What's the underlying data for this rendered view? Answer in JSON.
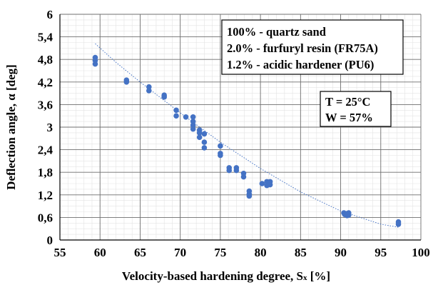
{
  "chart_data": {
    "type": "scatter",
    "title": "",
    "xlabel": "Velocity-based hardening degree, S",
    "xlabel_sub": "x",
    "xlabel_unit": " [%]",
    "ylabel": "Deflection angle, α [deg]",
    "xlim": [
      55,
      100
    ],
    "ylim": [
      0,
      6
    ],
    "x_ticks": [
      55,
      60,
      65,
      70,
      75,
      80,
      85,
      90,
      95,
      100
    ],
    "x_tick_labels": [
      "55",
      "60",
      "65",
      "70",
      "75",
      "80",
      "85",
      "90",
      "95",
      "100"
    ],
    "y_ticks": [
      0,
      0.6,
      1.2,
      1.8,
      2.4,
      3,
      3.6,
      4.2,
      4.8,
      5.4,
      6
    ],
    "y_tick_labels": [
      "0",
      "0,6",
      "1,2",
      "1,8",
      "2,4",
      "3",
      "3,6",
      "4,2",
      "4,8",
      "5,4",
      "6"
    ],
    "grid": "major and minor",
    "marker_color": "#4472c4",
    "trendline_color": "#4472c4",
    "trendline": {
      "style": "dotted",
      "points": [
        [
          59.4,
          5.22
        ],
        [
          62,
          4.72
        ],
        [
          65,
          4.2
        ],
        [
          70,
          3.38
        ],
        [
          75,
          2.6
        ],
        [
          80,
          1.9
        ],
        [
          85,
          1.28
        ],
        [
          90,
          0.77
        ],
        [
          95,
          0.42
        ],
        [
          97.2,
          0.34
        ]
      ]
    },
    "points": [
      [
        59.4,
        4.85
      ],
      [
        59.4,
        4.77
      ],
      [
        59.4,
        4.68
      ],
      [
        63.3,
        4.25
      ],
      [
        63.3,
        4.2
      ],
      [
        66.1,
        4.07
      ],
      [
        66.1,
        3.97
      ],
      [
        68.0,
        3.85
      ],
      [
        68.0,
        3.8
      ],
      [
        69.5,
        3.45
      ],
      [
        69.5,
        3.3
      ],
      [
        70.7,
        3.27
      ],
      [
        71.6,
        3.27
      ],
      [
        71.6,
        3.15
      ],
      [
        71.6,
        3.05
      ],
      [
        71.6,
        2.95
      ],
      [
        72.4,
        2.92
      ],
      [
        72.4,
        2.85
      ],
      [
        72.4,
        2.73
      ],
      [
        73.0,
        2.82
      ],
      [
        73.0,
        2.6
      ],
      [
        73.0,
        2.45
      ],
      [
        75.0,
        2.5
      ],
      [
        75.0,
        2.3
      ],
      [
        75.0,
        2.25
      ],
      [
        76.1,
        1.92
      ],
      [
        76.1,
        1.85
      ],
      [
        77.0,
        1.92
      ],
      [
        77.0,
        1.85
      ],
      [
        77.9,
        1.77
      ],
      [
        77.9,
        1.68
      ],
      [
        78.6,
        1.3
      ],
      [
        78.6,
        1.22
      ],
      [
        78.6,
        1.17
      ],
      [
        80.2,
        1.5
      ],
      [
        80.8,
        1.55
      ],
      [
        80.8,
        1.45
      ],
      [
        81.2,
        1.55
      ],
      [
        81.2,
        1.47
      ],
      [
        90.4,
        0.72
      ],
      [
        90.5,
        0.68
      ],
      [
        90.7,
        0.7
      ],
      [
        90.8,
        0.65
      ],
      [
        91.0,
        0.72
      ],
      [
        91.0,
        0.66
      ],
      [
        97.2,
        0.48
      ],
      [
        97.2,
        0.42
      ]
    ]
  },
  "legend_box": {
    "lines": [
      "100% - quartz sand",
      "2.0% - furfuryl resin (FR75A)",
      "1.2% - acidic hardener (PU6)"
    ]
  },
  "conditions_box": {
    "lines": [
      "T = 25°C",
      "W = 57%"
    ]
  }
}
